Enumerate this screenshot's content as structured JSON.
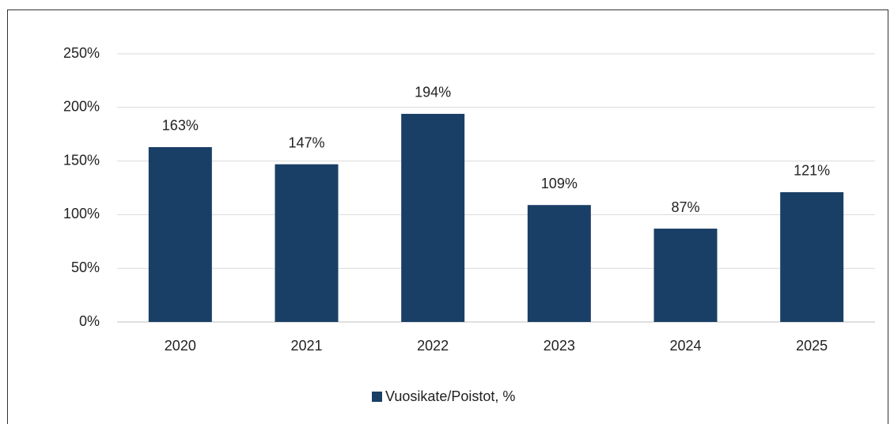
{
  "chart_data": {
    "type": "bar",
    "categories": [
      "2020",
      "2021",
      "2022",
      "2023",
      "2024",
      "2025"
    ],
    "series": [
      {
        "name": "Vuosikate/Poistot, %",
        "color": "#1a3f66",
        "values": [
          163,
          147,
          194,
          109,
          87,
          121
        ],
        "value_labels": [
          "163%",
          "147%",
          "194%",
          "109%",
          "87%",
          "121%"
        ]
      }
    ],
    "ylim": [
      0,
      250
    ],
    "yticks": [
      {
        "value": 0,
        "label": "0%"
      },
      {
        "value": 50,
        "label": "50%"
      },
      {
        "value": 100,
        "label": "100%"
      },
      {
        "value": 150,
        "label": "150%"
      },
      {
        "value": 200,
        "label": "200%"
      },
      {
        "value": 250,
        "label": "250%"
      }
    ],
    "grid": true,
    "legend": "bottom"
  }
}
